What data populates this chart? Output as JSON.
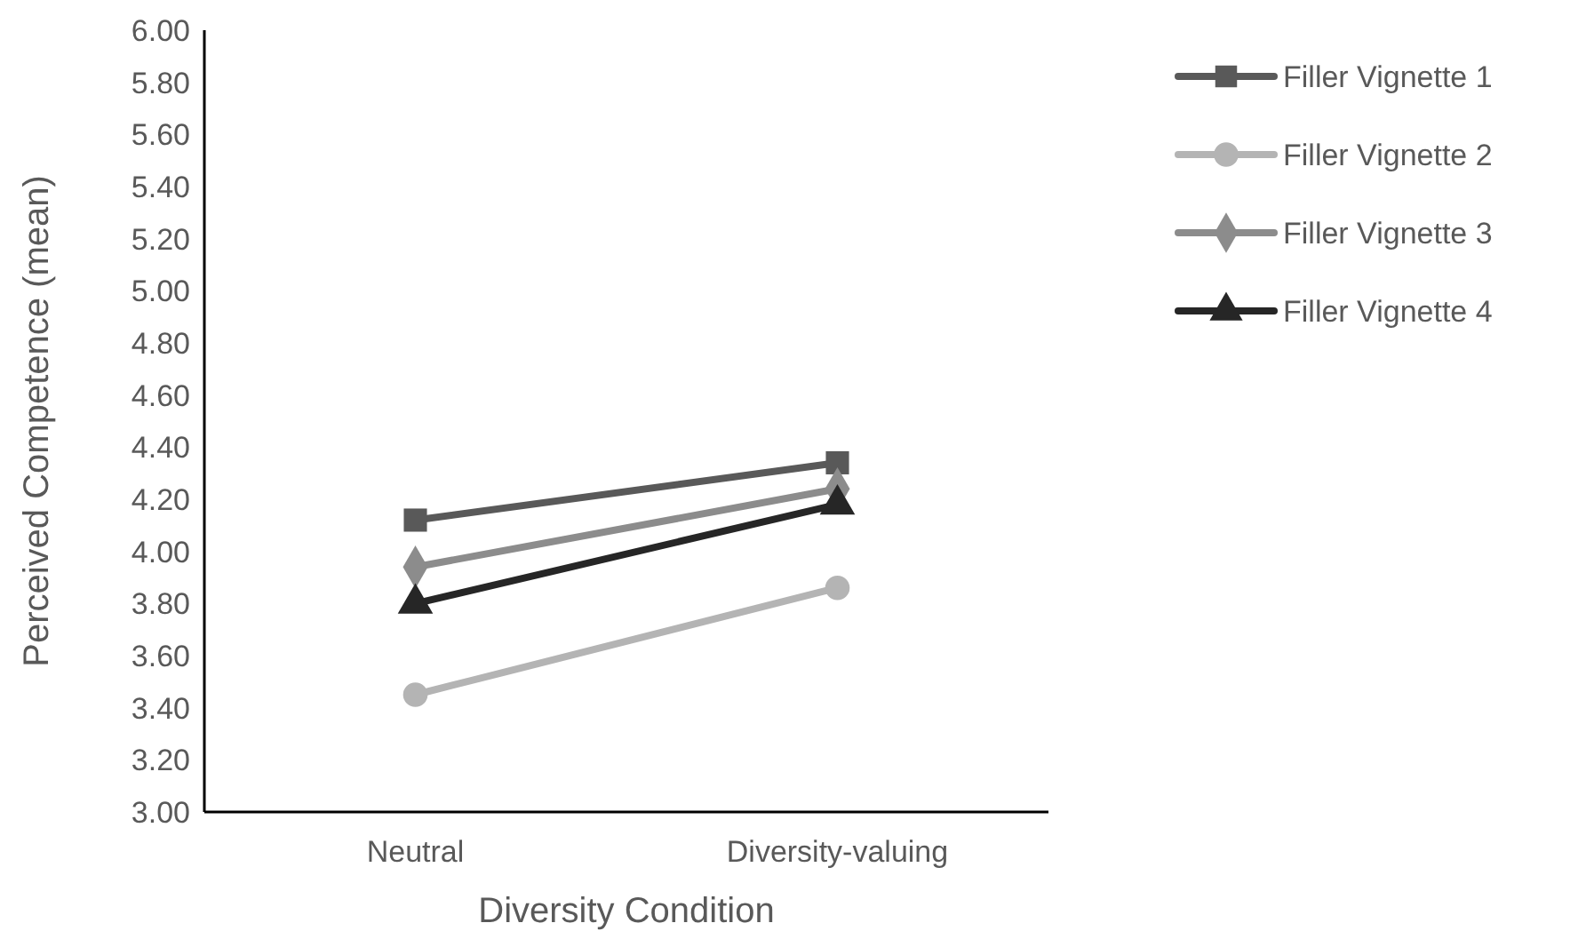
{
  "chart_data": {
    "type": "line",
    "xlabel": "Diversity Condition",
    "ylabel": "Perceived Competence (mean)",
    "categories": [
      "Neutral",
      "Diversity-valuing"
    ],
    "series": [
      {
        "name": "Filler Vignette 1",
        "color": "#595959",
        "marker": "square",
        "values": [
          4.12,
          4.34
        ]
      },
      {
        "name": "Filler Vignette 2",
        "color": "#b4b4b4",
        "marker": "circle",
        "values": [
          3.45,
          3.86
        ]
      },
      {
        "name": "Filler Vignette 3",
        "color": "#8c8c8c",
        "marker": "diamond",
        "values": [
          3.94,
          4.24
        ]
      },
      {
        "name": "Filler Vignette 4",
        "color": "#262626",
        "marker": "triangle",
        "values": [
          3.8,
          4.18
        ]
      }
    ],
    "ylim": [
      3,
      6
    ],
    "yticks": [
      {
        "value": 3,
        "label": "3.00"
      },
      {
        "value": 3.2,
        "label": "3.20"
      },
      {
        "value": 3.4,
        "label": "3.40"
      },
      {
        "value": 3.6,
        "label": "3.60"
      },
      {
        "value": 3.8,
        "label": "3.80"
      },
      {
        "value": 4,
        "label": "4.00"
      },
      {
        "value": 4.2,
        "label": "4.20"
      },
      {
        "value": 4.4,
        "label": "4.40"
      },
      {
        "value": 4.6,
        "label": "4.60"
      },
      {
        "value": 4.8,
        "label": "4.80"
      },
      {
        "value": 5,
        "label": "5.00"
      },
      {
        "value": 5.2,
        "label": "5.20"
      },
      {
        "value": 5.4,
        "label": "5.40"
      },
      {
        "value": 5.6,
        "label": "5.60"
      },
      {
        "value": 5.8,
        "label": "5.80"
      },
      {
        "value": 6,
        "label": "6.00"
      }
    ],
    "grid": false,
    "legend": "right"
  }
}
